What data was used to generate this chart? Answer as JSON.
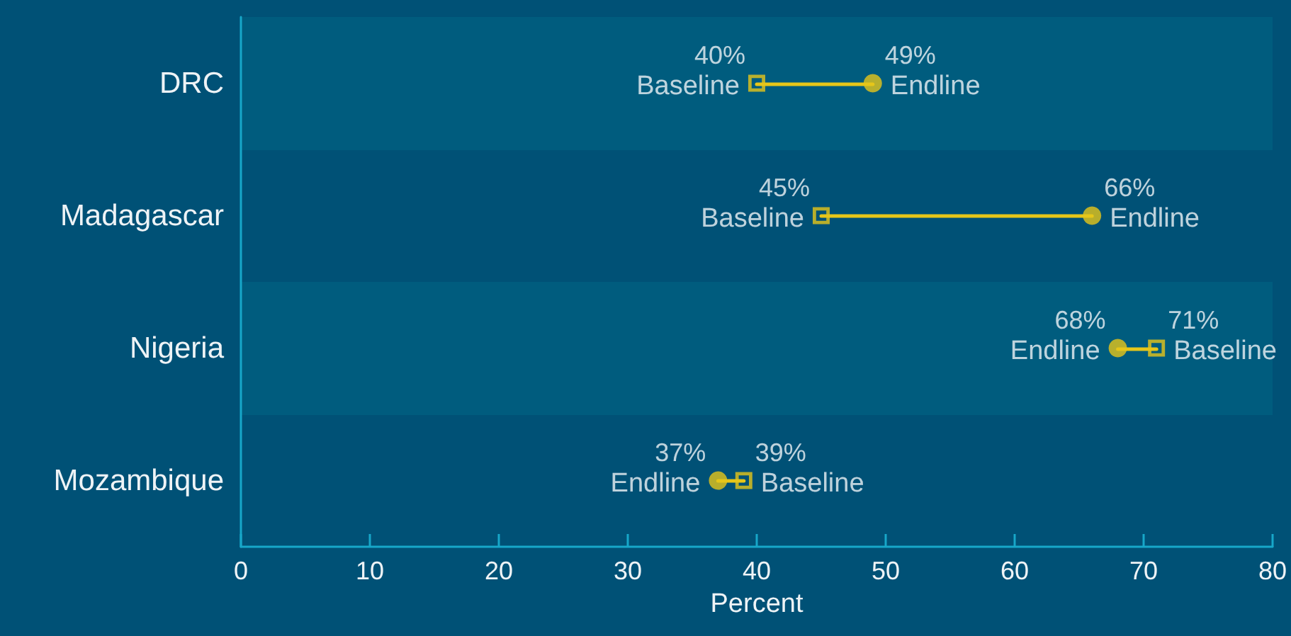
{
  "chart_data": {
    "type": "scatter",
    "orientation": "horizontal",
    "xlabel": "Percent",
    "categories": [
      "DRC",
      "Madagascar",
      "Nigeria",
      "Mozambique"
    ],
    "bands": [
      {
        "axis": "y",
        "from": "DRC",
        "to": "DRC",
        "color": "#005c7e"
      },
      {
        "axis": "y",
        "from": "Nigeria",
        "to": "Nigeria",
        "color": "#005c7e"
      }
    ],
    "xlim": [
      0,
      80
    ],
    "xticks": [
      0,
      10,
      20,
      30,
      40,
      50,
      60,
      70,
      80
    ],
    "grid": false,
    "legend": false,
    "series": [
      {
        "name": "Baseline",
        "color": "#e6c619",
        "marker": "square",
        "values": [
          40,
          45,
          71,
          39
        ],
        "value_labels": [
          "40%",
          "45%",
          "71%",
          "39%"
        ]
      },
      {
        "name": "Endline",
        "color": "#e6c619",
        "marker": "circle",
        "values": [
          49,
          66,
          68,
          37
        ],
        "value_labels": [
          "49%",
          "66%",
          "68%",
          "37%"
        ]
      }
    ]
  }
}
